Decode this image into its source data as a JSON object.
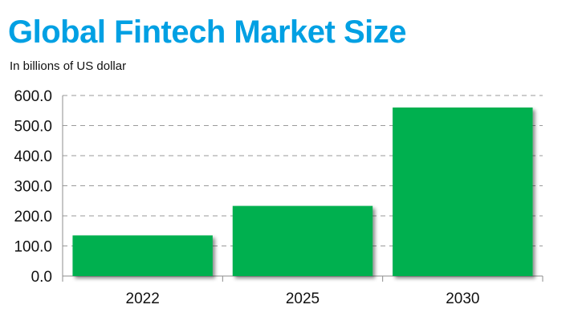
{
  "chart_data": {
    "type": "bar",
    "title": "Global Fintech Market Size",
    "subtitle": "In billions of US dollar",
    "categories": [
      "2022",
      "2025",
      "2030"
    ],
    "values": [
      135,
      233,
      560
    ],
    "ylim": [
      0,
      600
    ],
    "yticks": [
      0,
      100,
      200,
      300,
      400,
      500,
      600
    ],
    "ytick_labels": [
      "0.0",
      "100.0",
      "200.0",
      "300.0",
      "400.0",
      "500.0",
      "600.0"
    ],
    "grid": true,
    "legend": "none",
    "bar_color": "#00b04f",
    "title_color": "#00a0e3"
  }
}
